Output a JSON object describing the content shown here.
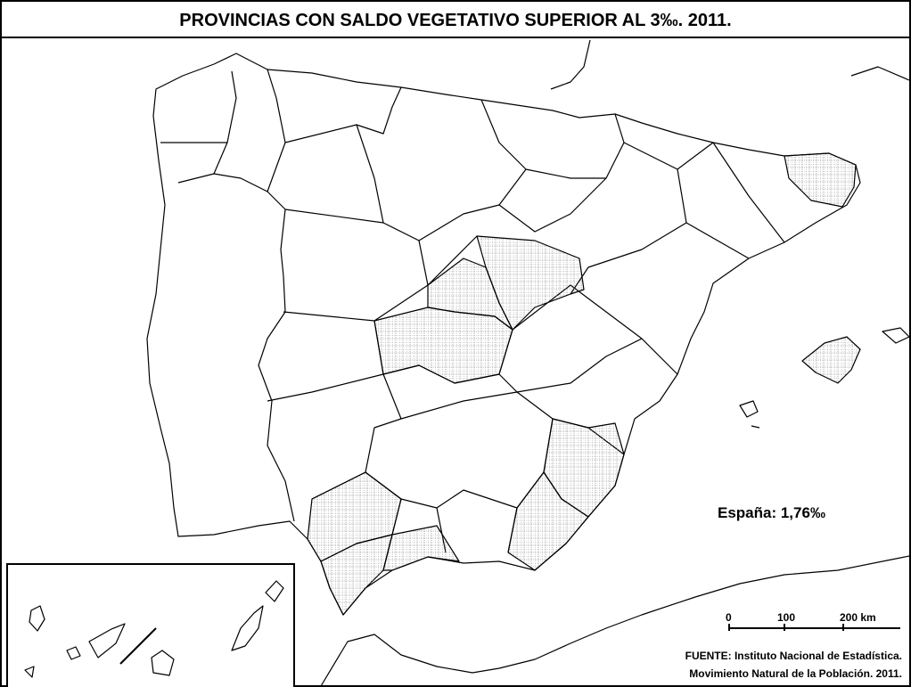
{
  "title": "PROVINCIAS CON SALDO VEGETATIVO SUPERIOR AL 3‰. 2011.",
  "annotation": "España: 1,76‰",
  "scale": {
    "labels": [
      "0",
      "100",
      "200 km"
    ]
  },
  "source": [
    "FUENTE: Instituto Nacional de Estadística.",
    "Movimiento Natural de la Población. 2011."
  ]
}
